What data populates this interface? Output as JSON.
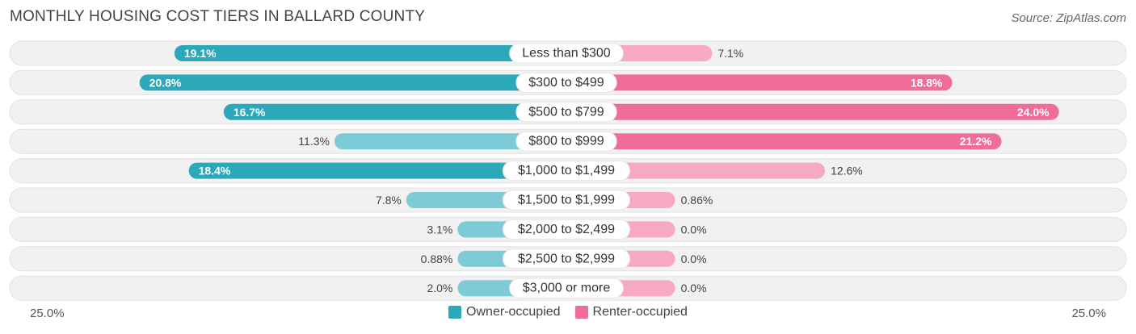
{
  "title": "MONTHLY HOUSING COST TIERS IN BALLARD COUNTY",
  "source": "Source: ZipAtlas.com",
  "colors": {
    "owner_strong": "#2ba8ba",
    "owner_light": "#7ccbd6",
    "renter_strong": "#f06d97",
    "renter_light": "#f7a9c3",
    "track": "#f1f1f1"
  },
  "chart_data": {
    "type": "bar",
    "orientation": "horizontal-diverging",
    "categories": [
      "Less than $300",
      "$300 to $499",
      "$500 to $799",
      "$800 to $999",
      "$1,000 to $1,499",
      "$1,500 to $1,999",
      "$2,000 to $2,499",
      "$2,500 to $2,999",
      "$3,000 or more"
    ],
    "series": [
      {
        "name": "Owner-occupied",
        "values": [
          19.1,
          20.8,
          16.7,
          11.3,
          18.4,
          7.8,
          3.1,
          0.88,
          2.0
        ],
        "labels": [
          "19.1%",
          "20.8%",
          "16.7%",
          "11.3%",
          "18.4%",
          "7.8%",
          "3.1%",
          "0.88%",
          "2.0%"
        ]
      },
      {
        "name": "Renter-occupied",
        "values": [
          7.1,
          18.8,
          24.0,
          21.2,
          12.6,
          0.86,
          0.0,
          0.0,
          0.0
        ],
        "labels": [
          "7.1%",
          "18.8%",
          "24.0%",
          "21.2%",
          "12.6%",
          "0.86%",
          "0.0%",
          "0.0%",
          "0.0%"
        ]
      }
    ],
    "xlim": [
      -25,
      25
    ],
    "axis_left_label": "25.0%",
    "axis_right_label": "25.0%",
    "legend_position": "bottom-center"
  }
}
